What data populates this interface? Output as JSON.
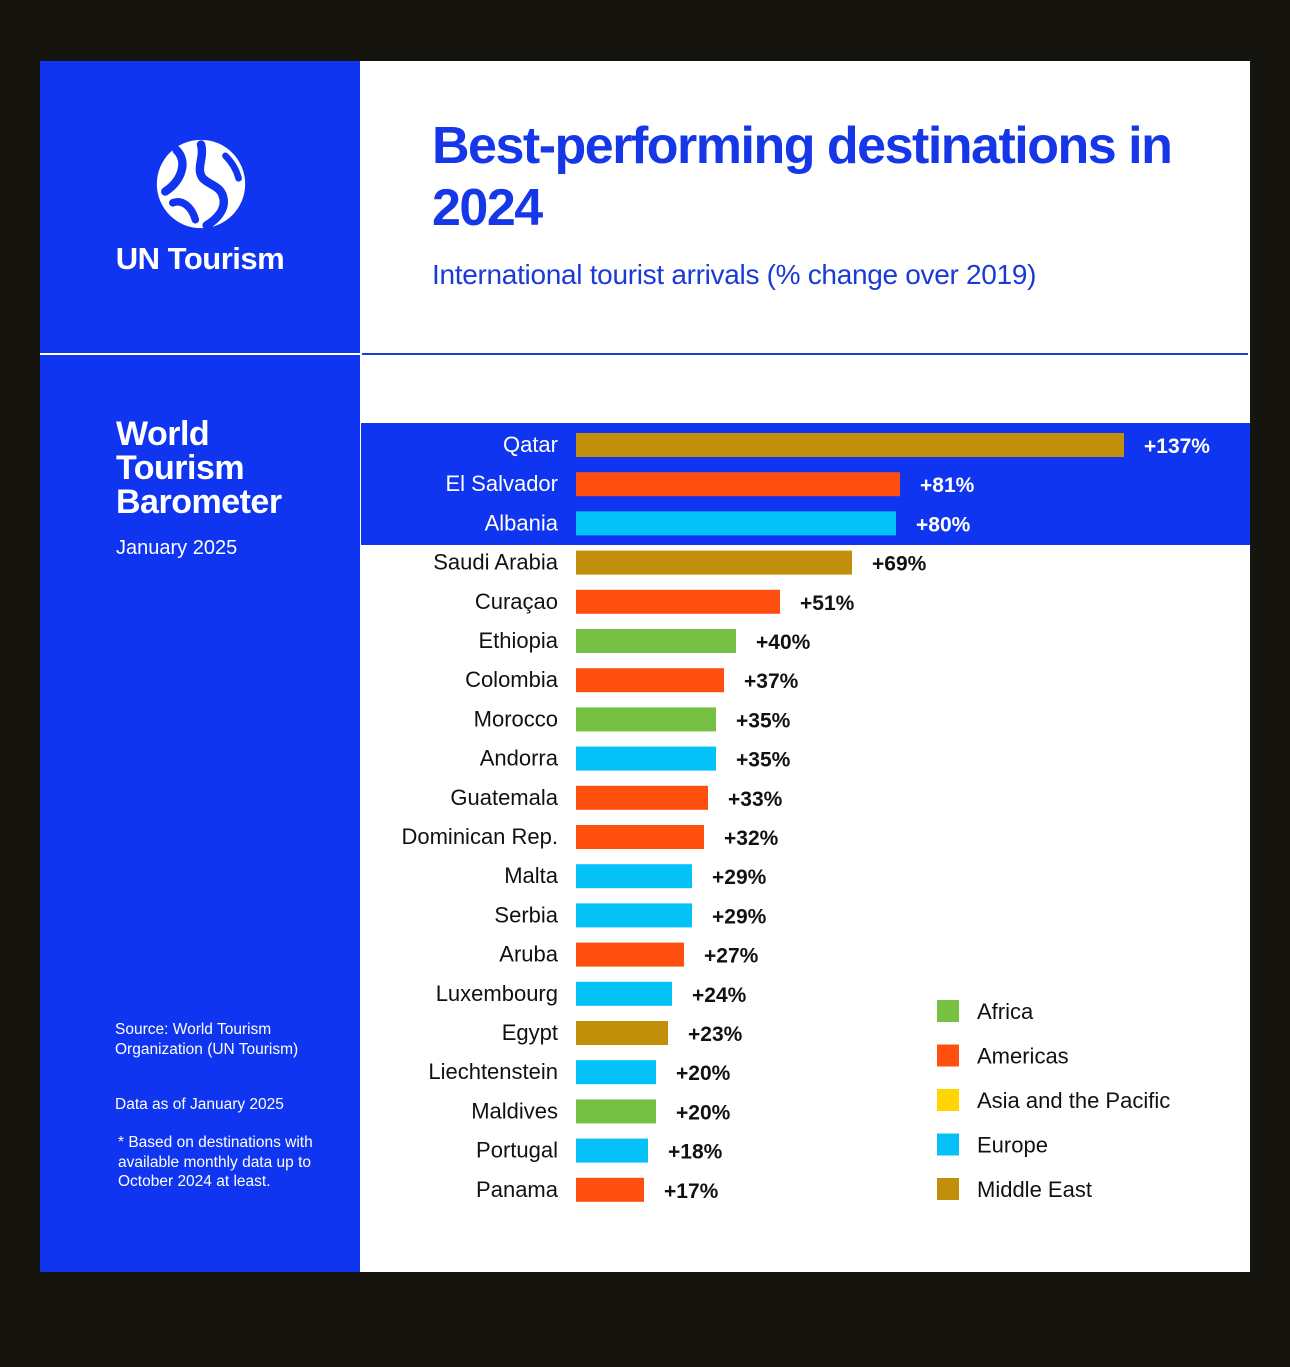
{
  "brand": {
    "name": "UN Tourism"
  },
  "report": {
    "title": "World Tourism Barometer",
    "date": "January 2025",
    "source": "Source: World Tourism Organization (UN Tourism)",
    "data_note": "Data as of January 2025",
    "footnote": "* Based on destinations with available monthly data up to October 2024 at least."
  },
  "colors": {
    "brand_blue": "#0f35f1",
    "Africa": "#76c043",
    "Americas": "#ff4f0f",
    "Asia and the Pacific": "#ffd400",
    "Europe": "#04c2f8",
    "Middle East": "#c18f0a"
  },
  "chart_data": {
    "type": "bar",
    "orientation": "horizontal",
    "title": "Best-performing destinations in 2024",
    "subtitle": "International tourist arrivals (% change over 2019)",
    "highlighted_top": 3,
    "categories": [
      "Qatar",
      "El Salvador",
      "Albania",
      "Saudi Arabia",
      "Curaçao",
      "Ethiopia",
      "Colombia",
      "Morocco",
      "Andorra",
      "Guatemala",
      "Dominican Rep.",
      "Malta",
      "Serbia",
      "Aruba",
      "Luxembourg",
      "Egypt",
      "Liechtenstein",
      "Maldives",
      "Portugal",
      "Panama"
    ],
    "values": [
      137,
      81,
      80,
      69,
      51,
      40,
      37,
      35,
      35,
      33,
      32,
      29,
      29,
      27,
      24,
      23,
      20,
      20,
      18,
      17
    ],
    "value_labels": [
      "+137%",
      "+81%",
      "+80%",
      "+69%",
      "+51%",
      "+40%",
      "+37%",
      "+35%",
      "+35%",
      "+33%",
      "+32%",
      "+29%",
      "+29%",
      "+27%",
      "+24%",
      "+23%",
      "+20%",
      "+20%",
      "+18%",
      "+17%"
    ],
    "regions": [
      "Middle East",
      "Americas",
      "Europe",
      "Middle East",
      "Americas",
      "Africa",
      "Americas",
      "Africa",
      "Europe",
      "Americas",
      "Americas",
      "Europe",
      "Europe",
      "Americas",
      "Europe",
      "Middle East",
      "Europe",
      "Africa",
      "Europe",
      "Americas"
    ],
    "xlim": [
      0,
      137
    ],
    "legend": {
      "position": "bottom-right",
      "entries": [
        "Africa",
        "Americas",
        "Asia and the Pacific",
        "Europe",
        "Middle East"
      ]
    }
  }
}
